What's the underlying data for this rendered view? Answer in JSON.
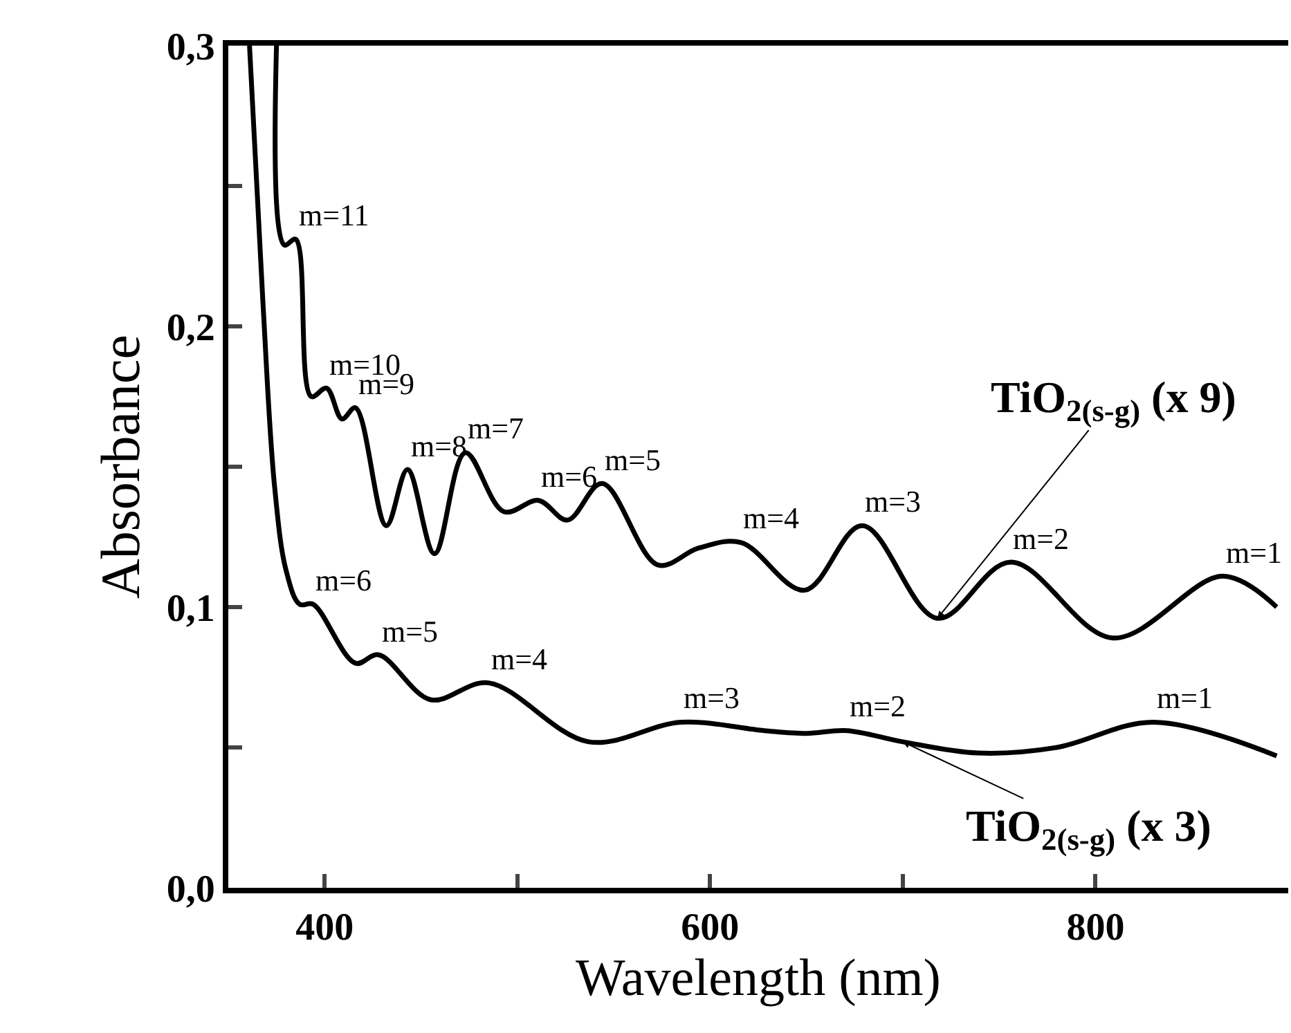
{
  "chart_data": {
    "type": "line",
    "xlabel": "Wavelength (nm)",
    "ylabel": "Absorbance",
    "xlim": [
      350,
      900
    ],
    "ylim": [
      0,
      0.3
    ],
    "xticks": [
      400,
      {
        "value": 500,
        "label": null
      },
      600,
      {
        "value": 700,
        "label": null
      },
      800
    ],
    "yticks": [
      {
        "value": 0,
        "label": "0,0"
      },
      {
        "value": 0.05,
        "label": null
      },
      {
        "value": 0.1,
        "label": "0,1"
      },
      {
        "value": 0.15,
        "label": null
      },
      {
        "value": 0.2,
        "label": "0,2"
      },
      {
        "value": 0.25,
        "label": null
      },
      {
        "value": 0.3,
        "label": "0,3"
      }
    ],
    "marker": "none",
    "line_style": "solid",
    "series": [
      {
        "color": "#000000",
        "x": [
          375,
          379,
          385,
          393,
          401,
          409,
          416,
          432,
          443,
          457,
          473,
          493,
          511,
          526,
          544,
          573,
          594,
          616,
          649,
          679,
          718,
          756,
          809,
          866,
          894
        ],
        "values": [
          0.3,
          0.229,
          0.231,
          0.175,
          0.178,
          0.167,
          0.171,
          0.129,
          0.149,
          0.119,
          0.155,
          0.134,
          0.138,
          0.131,
          0.144,
          0.115,
          0.121,
          0.123,
          0.106,
          0.129,
          0.096,
          0.116,
          0.089,
          0.111,
          0.1
        ]
      },
      {
        "color": "#000000",
        "x": [
          361,
          368,
          374,
          380,
          387,
          394,
          416,
          428,
          455,
          485,
          537,
          585,
          628,
          650,
          671,
          700,
          739,
          780,
          830,
          894
        ],
        "values": [
          0.3,
          0.208,
          0.143,
          0.113,
          0.101,
          0.101,
          0.08,
          0.083,
          0.067,
          0.073,
          0.052,
          0.059,
          0.056,
          0.055,
          0.056,
          0.052,
          0.048,
          0.05,
          0.059,
          0.047
        ]
      }
    ],
    "annotations": [
      {
        "text": "m=11",
        "x": 385,
        "y": 0.231
      },
      {
        "text": "m=10",
        "x": 401,
        "y": 0.178
      },
      {
        "text": "m=9",
        "x": 416,
        "y": 0.171
      },
      {
        "text": "m=8",
        "x": 443,
        "y": 0.149
      },
      {
        "text": "m=7",
        "x": 473,
        "y": 0.155
      },
      {
        "text": "m=6",
        "x": 511,
        "y": 0.138
      },
      {
        "text": "m=5",
        "x": 544,
        "y": 0.144
      },
      {
        "text": "m=4",
        "x": 616,
        "y": 0.123
      },
      {
        "text": "m=3",
        "x": 679,
        "y": 0.129
      },
      {
        "text": "m=2",
        "x": 756,
        "y": 0.116
      },
      {
        "text": "m=1",
        "x": 866,
        "y": 0.111
      },
      {
        "text": "m=6",
        "x": 394,
        "y": 0.101
      },
      {
        "text": "m=5",
        "x": 428,
        "y": 0.083
      },
      {
        "text": "m=4",
        "x": 485,
        "y": 0.073
      },
      {
        "text": "m=3",
        "x": 585,
        "y": 0.059
      },
      {
        "text": "m=2",
        "x": 671,
        "y": 0.056
      },
      {
        "text": "m=1",
        "x": 830,
        "y": 0.059
      },
      {
        "text": "TiO$_{2(s-g)}$ (x 9)",
        "x": 718,
        "y": 0.096
      },
      {
        "text": "TiO$_{2(s-g)}$ (x 3)",
        "x": 700,
        "y": 0.052
      }
    ]
  }
}
